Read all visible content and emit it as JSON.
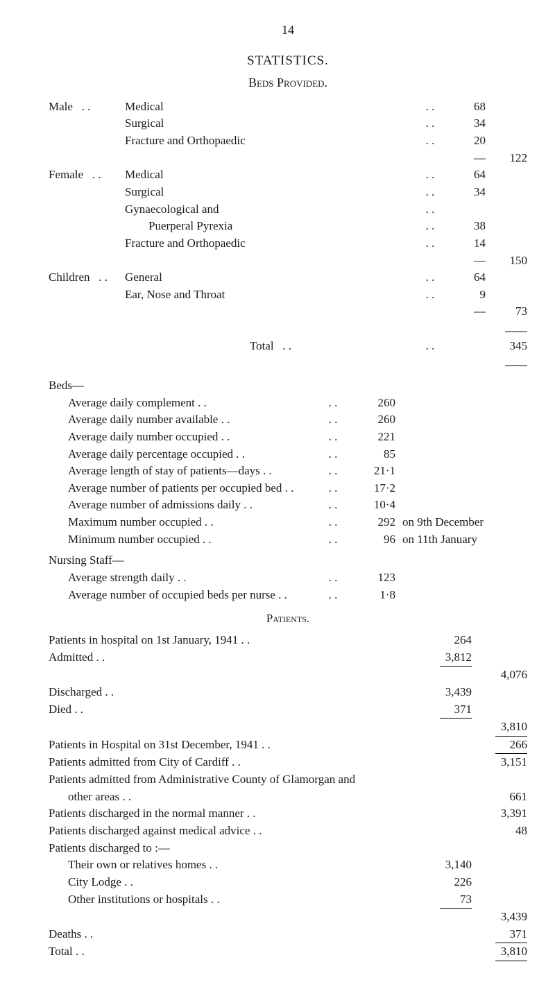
{
  "page_number": "14",
  "title": "STATISTICS.",
  "subtitle": "Beds Provided.",
  "beds_provided": {
    "groups": [
      {
        "label": "Male",
        "items": [
          {
            "label": "Medical",
            "value": "68"
          },
          {
            "label": "Surgical",
            "value": "34"
          },
          {
            "label": "Fracture and Orthopaedic",
            "value": "20"
          }
        ],
        "subtotal": "122"
      },
      {
        "label": "Female",
        "items": [
          {
            "label": "Medical",
            "value": "64"
          },
          {
            "label": "Surgical",
            "value": "34"
          },
          {
            "label": "Gynaecological and",
            "value": ""
          },
          {
            "label": "        Puerperal Pyrexia",
            "value": "38"
          },
          {
            "label": "Fracture and Orthopaedic",
            "value": "14"
          }
        ],
        "subtotal": "150"
      },
      {
        "label": "Children",
        "items": [
          {
            "label": "General",
            "value": "64"
          },
          {
            "label": "Ear, Nose and Throat",
            "value": "9"
          }
        ],
        "subtotal": "73"
      }
    ],
    "total_label": "Total",
    "total": "345"
  },
  "beds_section": {
    "heading": "Beds—",
    "rows": [
      {
        "label": "Average daily complement",
        "value": "260",
        "note": ""
      },
      {
        "label": "Average daily number available",
        "value": "260",
        "note": ""
      },
      {
        "label": "Average daily number occupied",
        "value": "221",
        "note": ""
      },
      {
        "label": "Average daily percentage occupied",
        "value": "85",
        "note": ""
      },
      {
        "label": "Average length of stay of patients—days",
        "value": "21·1",
        "note": ""
      },
      {
        "label": "Average number of patients per occupied bed",
        "value": "17·2",
        "note": ""
      },
      {
        "label": "Average number of admissions daily",
        "value": "10·4",
        "note": ""
      },
      {
        "label": "Maximum number occupied",
        "value": "292",
        "note": "on 9th December"
      },
      {
        "label": "Minimum number occupied",
        "value": "96",
        "note": "on 11th January"
      }
    ]
  },
  "nursing": {
    "heading": "Nursing Staff—",
    "rows": [
      {
        "label": "Average strength daily",
        "value": "123"
      },
      {
        "label": "Average number of occupied beds per nurse",
        "value": "1·8"
      }
    ]
  },
  "patients": {
    "heading": "Patients.",
    "top": [
      {
        "label": "Patients in hospital on 1st January, 1941",
        "v1": "264",
        "v2": ""
      },
      {
        "label": "Admitted",
        "v1": "3,812",
        "v2": ""
      }
    ],
    "top_total": "4,076",
    "mid": [
      {
        "label": "Discharged",
        "v1": "3,439",
        "v2": ""
      },
      {
        "label": "Died",
        "v1": "371",
        "v2": ""
      }
    ],
    "mid_total": "3,810",
    "in_hospital": {
      "label": "Patients in Hospital on 31st December, 1941",
      "v2": "266"
    },
    "admitted_cardiff": {
      "label": "Patients admitted from City of Cardiff",
      "v2": "3,151"
    },
    "admitted_glam_intro": "Patients admitted from Administrative County of Glamorgan and",
    "admitted_glam": {
      "label": "other areas",
      "v2": "661"
    },
    "discharged_normal": {
      "label": "Patients discharged in the normal manner",
      "v2": "3,391"
    },
    "discharged_advice": {
      "label": "Patients discharged against medical advice",
      "v2": "48"
    },
    "discharged_to_heading": "Patients discharged to :—",
    "discharged_to": [
      {
        "label": "Their own or relatives homes",
        "v1": "3,140"
      },
      {
        "label": "City Lodge",
        "v1": "226"
      },
      {
        "label": "Other institutions or hospitals",
        "v1": "73"
      }
    ],
    "discharged_to_total": "3,439",
    "deaths": {
      "label": "Deaths",
      "v2": "371"
    },
    "grand_total_label": "Total",
    "grand_total": "3,810"
  }
}
